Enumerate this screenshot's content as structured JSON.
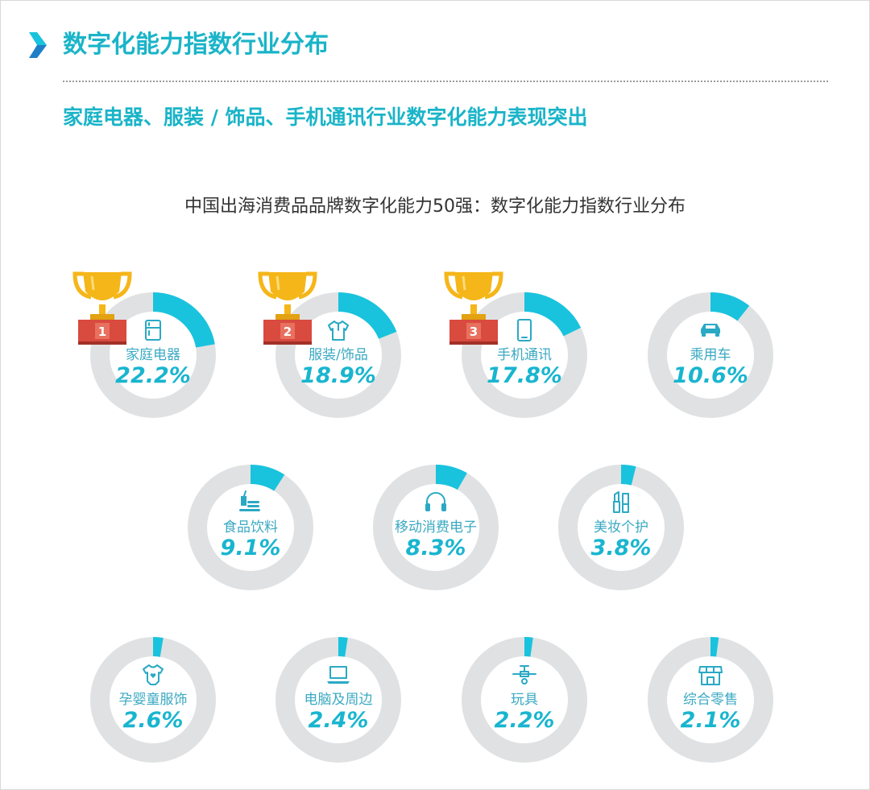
{
  "header": {
    "title": "数字化能力指数行业分布",
    "subtitle": "家庭电器、服装 / 饰品、手机通讯行业数字化能力表现突出"
  },
  "colors": {
    "accent": "#19C3DD",
    "ring_background": "#E0E1E3",
    "text_accent": "#1AB4C8",
    "trophy_gold": "#F5B619",
    "rank_plate": "#D94A3F"
  },
  "chart_data": {
    "type": "donut",
    "title": "中国出海消费品品牌数字化能力50强：数字化能力指数行业分布",
    "value_unit": "%",
    "items": [
      {
        "label": "家庭电器",
        "value": 22.2,
        "value_text": "22.2%",
        "icon": "refrigerator-icon",
        "rank": "1"
      },
      {
        "label": "服装/饰品",
        "value": 18.9,
        "value_text": "18.9%",
        "icon": "shirt-icon",
        "rank": "2"
      },
      {
        "label": "手机通讯",
        "value": 17.8,
        "value_text": "17.8%",
        "icon": "mobile-phone-icon",
        "rank": "3"
      },
      {
        "label": "乘用车",
        "value": 10.6,
        "value_text": "10.6%",
        "icon": "car-icon"
      },
      {
        "label": "食品饮料",
        "value": 9.1,
        "value_text": "9.1%",
        "icon": "food-drink-icon"
      },
      {
        "label": "移动消费电子",
        "value": 8.3,
        "value_text": "8.3%",
        "icon": "headphones-icon"
      },
      {
        "label": "美妆个护",
        "value": 3.8,
        "value_text": "3.8%",
        "icon": "lipstick-icon"
      },
      {
        "label": "孕婴童服饰",
        "value": 2.6,
        "value_text": "2.6%",
        "icon": "baby-onesie-icon"
      },
      {
        "label": "电脑及周边",
        "value": 2.4,
        "value_text": "2.4%",
        "icon": "laptop-icon"
      },
      {
        "label": "玩具",
        "value": 2.2,
        "value_text": "2.2%",
        "icon": "toy-icon"
      },
      {
        "label": "综合零售",
        "value": 2.1,
        "value_text": "2.1%",
        "icon": "store-icon"
      }
    ]
  }
}
